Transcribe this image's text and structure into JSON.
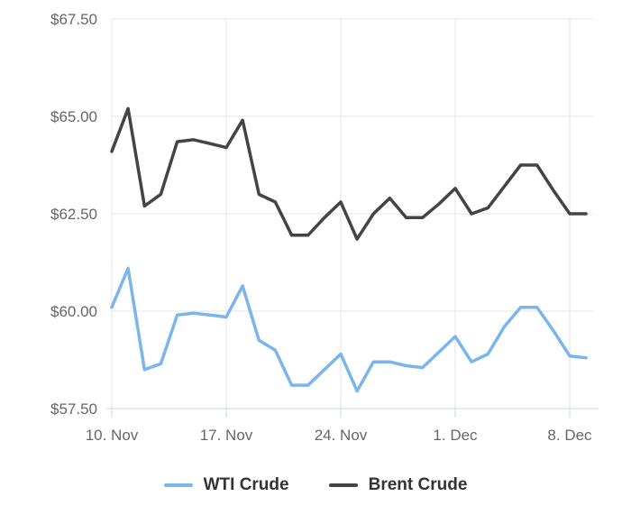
{
  "chart_data": {
    "type": "line",
    "title": "",
    "y_axis": {
      "tick_values": [
        57.5,
        60.0,
        62.5,
        65.0,
        67.5
      ],
      "tick_labels": [
        "$57.50",
        "$60.00",
        "$62.50",
        "$65.00",
        "$67.50"
      ],
      "min": 57.5,
      "max": 67.5,
      "grid": true
    },
    "x_axis": {
      "tick_labels": [
        "10. Nov",
        "17. Nov",
        "24. Nov",
        "1. Dec",
        "8. Dec"
      ],
      "tick_days": [
        0,
        7,
        14,
        21,
        28
      ],
      "range_days": [
        0,
        29
      ],
      "grid": true
    },
    "series": [
      {
        "name": "WTI Crude",
        "color": "#7cb5ec",
        "values": [
          60.1,
          61.1,
          58.5,
          58.65,
          59.9,
          59.95,
          59.9,
          59.85,
          60.65,
          59.25,
          59.0,
          58.1,
          58.1,
          58.5,
          58.9,
          57.95,
          58.7,
          58.7,
          58.6,
          58.55,
          58.95,
          59.35,
          58.7,
          58.9,
          59.6,
          60.1,
          60.1,
          59.5,
          58.85,
          58.8
        ]
      },
      {
        "name": "Brent Crude",
        "color": "#434348",
        "values": [
          64.1,
          65.2,
          62.7,
          63.0,
          64.35,
          64.4,
          64.3,
          64.2,
          64.9,
          63.0,
          62.8,
          61.95,
          61.95,
          62.4,
          62.8,
          61.85,
          62.5,
          62.9,
          62.4,
          62.4,
          62.75,
          63.15,
          62.5,
          62.65,
          63.2,
          63.75,
          63.75,
          63.1,
          62.5,
          62.5
        ]
      }
    ],
    "legend_position": "bottom-center",
    "colors": {
      "grid_line": "#e6e6e6",
      "axis_line": "#ccd6eb",
      "tick_mark": "#ccd6eb",
      "axis_text": "#666666",
      "legend_text": "#333333",
      "background": "#ffffff"
    }
  }
}
